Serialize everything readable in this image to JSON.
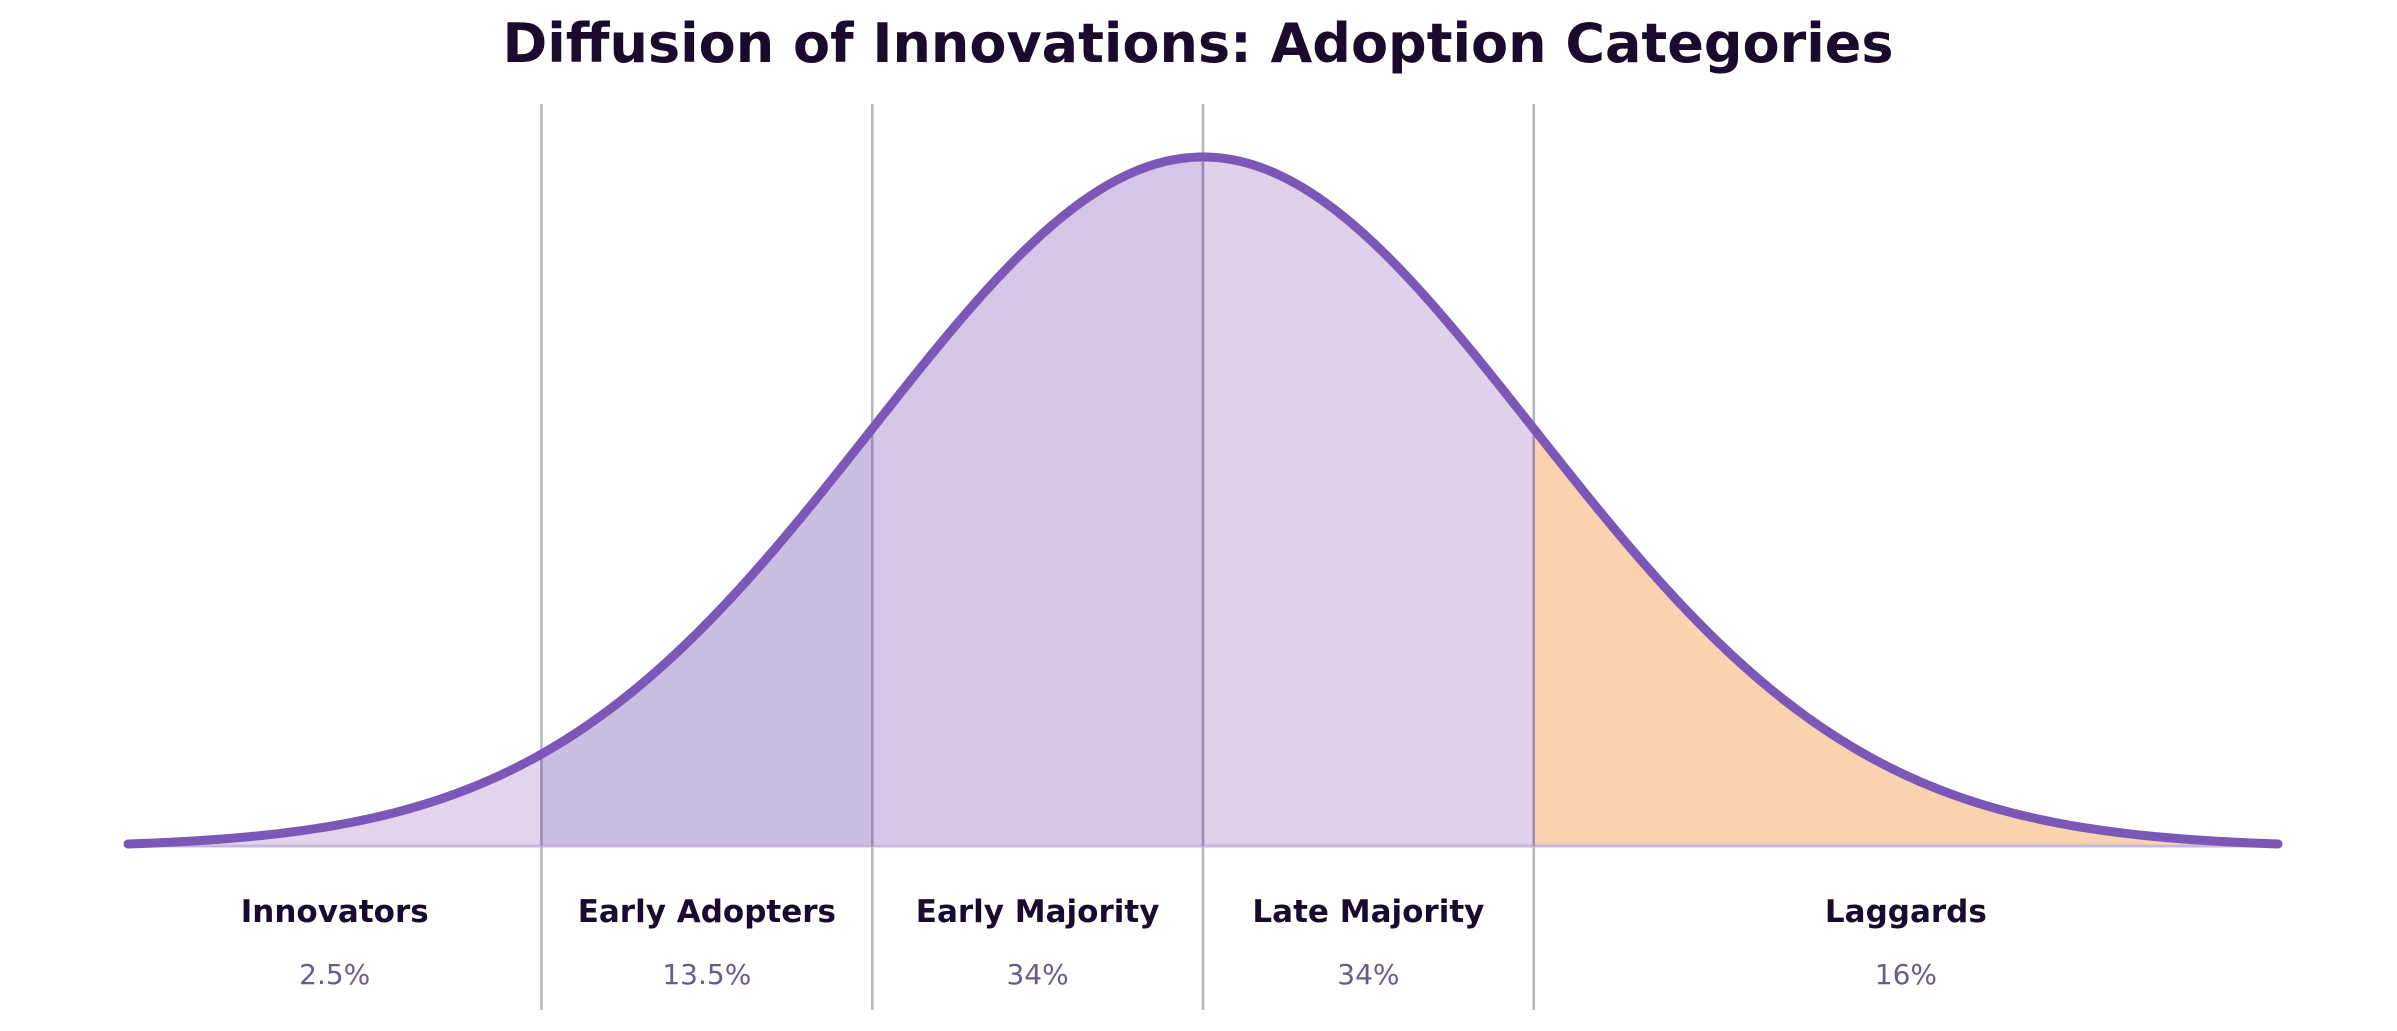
{
  "chart_data": {
    "type": "area",
    "title": "Diffusion of Innovations: Adoption Categories",
    "distribution": "normal",
    "x_range_sd": [
      -3.25,
      3.25
    ],
    "boundaries_sd": [
      -2,
      -1,
      0,
      1
    ],
    "categories": [
      {
        "name": "Innovators",
        "label": "2.5%",
        "share": 2.5,
        "color": "#e2d3ee"
      },
      {
        "name": "Early Adopters",
        "label": "13.5%",
        "share": 13.5,
        "color": "#c9bde2"
      },
      {
        "name": "Early Majority",
        "label": "34%",
        "share": 34,
        "color": "#d5c5e7"
      },
      {
        "name": "Late Majority",
        "label": "34%",
        "share": 34,
        "color": "#dfd0eb"
      },
      {
        "name": "Laggards",
        "label": "16%",
        "share": 16,
        "color": "#f9d3b0"
      }
    ],
    "curve_color": "#7b57b8"
  }
}
